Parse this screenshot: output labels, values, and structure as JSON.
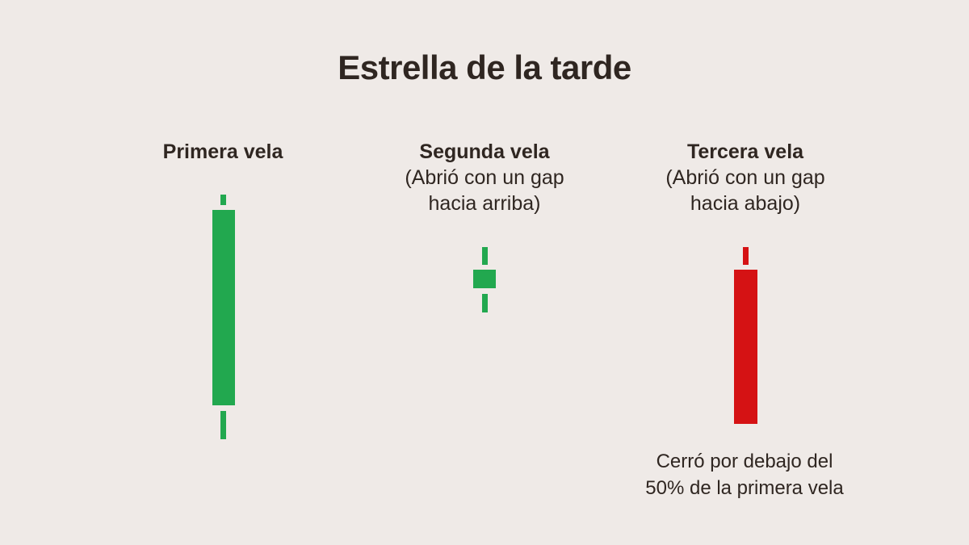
{
  "title": "Estrella de la tarde",
  "colors": {
    "bullish": "#22a84f",
    "bearish": "#d51214",
    "background": "#efeae7",
    "text": "#2f2621"
  },
  "candles": [
    {
      "heading": "Primera vela",
      "sub1": "",
      "sub2": "",
      "direction": "bullish"
    },
    {
      "heading": "Segunda vela",
      "sub1": "(Abrió con un gap",
      "sub2": "hacia arriba)",
      "direction": "bullish"
    },
    {
      "heading": "Tercera vela",
      "sub1": "(Abrió con un gap",
      "sub2": "hacia abajo)",
      "direction": "bearish"
    }
  ],
  "note": {
    "line1": "Cerró por debajo del",
    "line2": "50% de la primera vela"
  }
}
